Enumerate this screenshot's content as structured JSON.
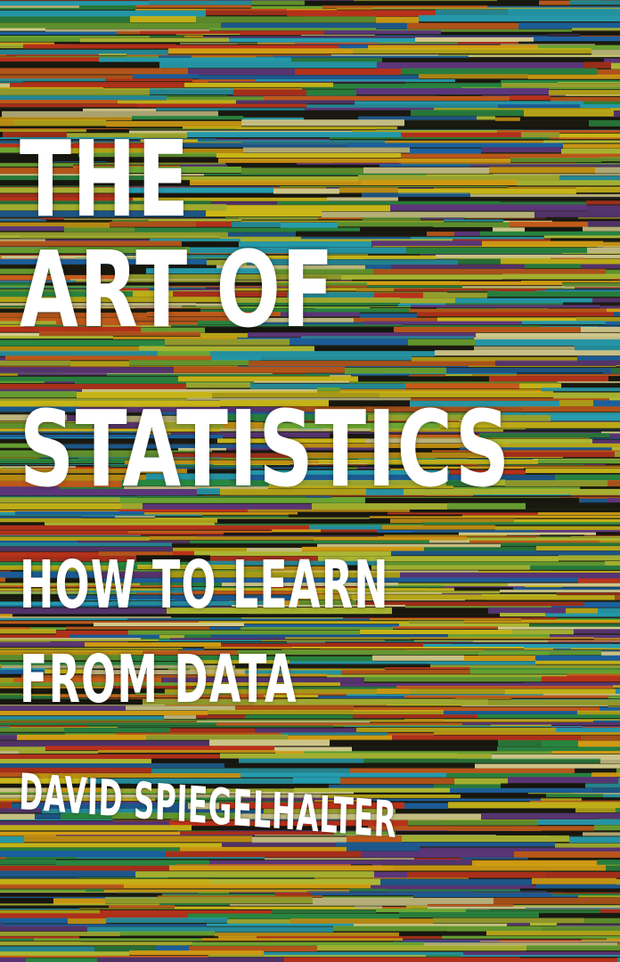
{
  "cover": {
    "title_lines": [
      "THE",
      "ART OF",
      "STATISTICS"
    ],
    "subtitle_lines": [
      "HOW TO LEARN",
      "FROM DATA"
    ],
    "author": "DAVID SPIEGELHALTER"
  },
  "palette": [
    "#e8d21c",
    "#f2b416",
    "#d8391f",
    "#2f9a4a",
    "#1f6fb8",
    "#7bbf3a",
    "#e56a1f",
    "#c9d63a",
    "#1a1a12",
    "#6b3f8f",
    "#2bb3c8",
    "#f0e6a0"
  ]
}
